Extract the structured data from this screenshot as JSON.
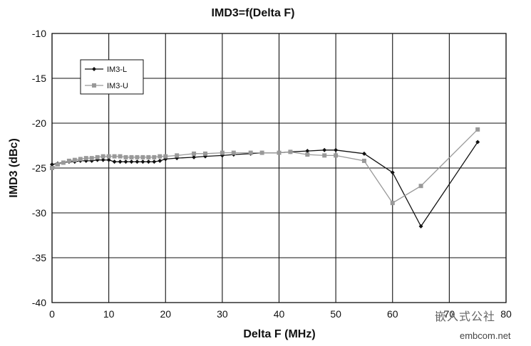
{
  "chart_data": {
    "type": "line",
    "title": "IMD3=f(Delta F)",
    "xlabel": "Delta F (MHz)",
    "ylabel": "IMD3 (dBc)",
    "xlim": [
      0,
      80
    ],
    "ylim": [
      -40,
      -10
    ],
    "x_ticks": [
      0,
      10,
      20,
      30,
      40,
      50,
      60,
      70,
      80
    ],
    "y_ticks": [
      -10,
      -15,
      -20,
      -25,
      -30,
      -35,
      -40
    ],
    "grid": true,
    "legend_position": "top-left",
    "series": [
      {
        "name": "IM3-L",
        "color": "#111111",
        "marker": "diamond",
        "x": [
          0,
          1,
          2,
          3,
          4,
          5,
          6,
          7,
          8,
          9,
          10,
          11,
          12,
          13,
          14,
          15,
          16,
          17,
          18,
          19,
          20,
          22,
          25,
          27,
          30,
          32,
          35,
          37,
          40,
          42,
          45,
          48,
          50,
          55,
          60,
          65,
          75
        ],
        "y": [
          -24.6,
          -24.5,
          -24.4,
          -24.3,
          -24.3,
          -24.2,
          -24.2,
          -24.2,
          -24.1,
          -24.1,
          -24.1,
          -24.3,
          -24.3,
          -24.3,
          -24.3,
          -24.3,
          -24.3,
          -24.3,
          -24.3,
          -24.2,
          -24.0,
          -23.9,
          -23.8,
          -23.7,
          -23.6,
          -23.5,
          -23.4,
          -23.3,
          -23.3,
          -23.2,
          -23.1,
          -23.0,
          -23.0,
          -23.4,
          -25.5,
          -31.5,
          -22.1
        ]
      },
      {
        "name": "IM3-U",
        "color": "#999999",
        "marker": "square",
        "x": [
          0,
          1,
          2,
          3,
          4,
          5,
          6,
          7,
          8,
          9,
          10,
          11,
          12,
          13,
          14,
          15,
          16,
          17,
          18,
          19,
          20,
          22,
          25,
          27,
          30,
          32,
          35,
          37,
          40,
          42,
          45,
          48,
          50,
          55,
          60,
          65,
          75
        ],
        "y": [
          -25.0,
          -24.6,
          -24.4,
          -24.2,
          -24.1,
          -24.0,
          -23.9,
          -23.9,
          -23.8,
          -23.7,
          -23.7,
          -23.7,
          -23.7,
          -23.8,
          -23.8,
          -23.8,
          -23.8,
          -23.8,
          -23.8,
          -23.7,
          -23.7,
          -23.6,
          -23.4,
          -23.4,
          -23.3,
          -23.3,
          -23.3,
          -23.3,
          -23.3,
          -23.2,
          -23.5,
          -23.6,
          -23.6,
          -24.2,
          -28.9,
          -27.0,
          -20.7
        ]
      }
    ]
  },
  "watermark": {
    "chinese": "嵌入式公社",
    "site": "embcom.net"
  }
}
